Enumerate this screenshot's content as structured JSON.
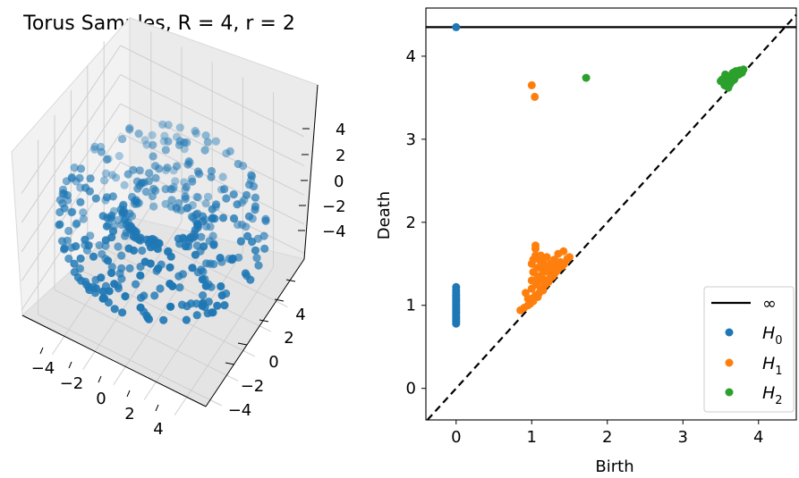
{
  "chart_data": [
    {
      "type": "scatter",
      "projection": "3d",
      "title": "Torus Samples, R = 4, r = 2",
      "series": [
        {
          "color": "#1f77b4",
          "shape": "torus",
          "R": 4,
          "r": 2,
          "n_points": 400
        }
      ],
      "x_ticks": [
        "−4",
        "−2",
        "0",
        "2",
        "4"
      ],
      "y_ticks": [
        "−4",
        "−2",
        "0",
        "2",
        "4"
      ],
      "z_ticks": [
        "−4",
        "−2",
        "0",
        "2",
        "4"
      ],
      "xlim": [
        -6,
        6
      ],
      "ylim": [
        -6,
        6
      ],
      "zlim": [
        -6,
        6
      ],
      "grid": true,
      "pane_color": "#f2f2f2"
    },
    {
      "type": "scatter",
      "title": "",
      "xlabel": "Birth",
      "ylabel": "Death",
      "xlim": [
        -0.4,
        4.5
      ],
      "ylim": [
        -0.38,
        4.58
      ],
      "x_ticks": [
        0,
        1,
        2,
        3,
        4
      ],
      "y_ticks": [
        0,
        1,
        2,
        3,
        4
      ],
      "x_tick_labels": [
        "0",
        "1",
        "2",
        "3",
        "4"
      ],
      "y_tick_labels": [
        "0",
        "1",
        "2",
        "3",
        "4"
      ],
      "infinity_line": {
        "y": 4.35,
        "label": "∞",
        "color": "#000000"
      },
      "diagonal": {
        "style": "dashed",
        "color": "#000000"
      },
      "legend_position": "bottom-right",
      "series": [
        {
          "name": "H0",
          "name_base": "H",
          "name_sub": "0",
          "color": "#1f77b4",
          "points": [
            [
              0,
              4.35
            ],
            [
              0,
              0.78
            ],
            [
              0,
              0.8
            ],
            [
              0,
              0.82
            ],
            [
              0,
              0.84
            ],
            [
              0,
              0.86
            ],
            [
              0,
              0.88
            ],
            [
              0,
              0.9
            ],
            [
              0,
              0.92
            ],
            [
              0,
              0.94
            ],
            [
              0,
              0.96
            ],
            [
              0,
              0.98
            ],
            [
              0,
              1.0
            ],
            [
              0,
              1.02
            ],
            [
              0,
              1.04
            ],
            [
              0,
              1.06
            ],
            [
              0,
              1.08
            ],
            [
              0,
              1.1
            ],
            [
              0,
              1.12
            ],
            [
              0,
              1.15
            ],
            [
              0,
              1.18
            ],
            [
              0,
              1.22
            ]
          ]
        },
        {
          "name": "H1",
          "name_base": "H",
          "name_sub": "1",
          "color": "#ff7f0e",
          "points": [
            [
              1.0,
              3.65
            ],
            [
              1.04,
              3.51
            ],
            [
              0.85,
              0.94
            ],
            [
              0.9,
              0.97
            ],
            [
              0.95,
              1.0
            ],
            [
              0.98,
              1.02
            ],
            [
              1.0,
              1.08
            ],
            [
              1.02,
              1.05
            ],
            [
              1.05,
              1.12
            ],
            [
              1.08,
              1.1
            ],
            [
              1.1,
              1.15
            ],
            [
              1.12,
              1.2
            ],
            [
              1.15,
              1.18
            ],
            [
              1.18,
              1.25
            ],
            [
              1.2,
              1.3
            ],
            [
              1.22,
              1.28
            ],
            [
              1.25,
              1.33
            ],
            [
              1.28,
              1.35
            ],
            [
              1.3,
              1.38
            ],
            [
              1.33,
              1.41
            ],
            [
              1.36,
              1.45
            ],
            [
              1.4,
              1.47
            ],
            [
              1.43,
              1.5
            ],
            [
              1.47,
              1.56
            ],
            [
              1.5,
              1.58
            ],
            [
              1.0,
              1.2
            ],
            [
              1.0,
              1.3
            ],
            [
              1.02,
              1.4
            ],
            [
              1.0,
              1.5
            ],
            [
              1.02,
              1.55
            ],
            [
              1.05,
              1.6
            ],
            [
              1.05,
              1.68
            ],
            [
              1.07,
              1.45
            ],
            [
              1.08,
              1.35
            ],
            [
              1.1,
              1.55
            ],
            [
              1.12,
              1.48
            ],
            [
              1.12,
              1.6
            ],
            [
              1.15,
              1.4
            ],
            [
              1.15,
              1.52
            ],
            [
              1.18,
              1.45
            ],
            [
              1.2,
              1.58
            ],
            [
              1.22,
              1.42
            ],
            [
              1.25,
              1.5
            ],
            [
              1.28,
              1.45
            ],
            [
              1.3,
              1.55
            ],
            [
              1.32,
              1.48
            ],
            [
              1.35,
              1.62
            ],
            [
              1.38,
              1.52
            ],
            [
              1.42,
              1.65
            ],
            [
              0.92,
              1.15
            ],
            [
              0.95,
              1.08
            ],
            [
              1.06,
              1.25
            ],
            [
              1.1,
              1.3
            ],
            [
              1.14,
              1.33
            ],
            [
              1.16,
              1.28
            ],
            [
              1.24,
              1.38
            ],
            [
              1.05,
              1.72
            ]
          ]
        },
        {
          "name": "H2",
          "name_base": "H",
          "name_sub": "2",
          "color": "#2ca02c",
          "points": [
            [
              1.72,
              3.74
            ],
            [
              3.5,
              3.7
            ],
            [
              3.52,
              3.72
            ],
            [
              3.55,
              3.65
            ],
            [
              3.56,
              3.78
            ],
            [
              3.58,
              3.7
            ],
            [
              3.6,
              3.62
            ],
            [
              3.6,
              3.74
            ],
            [
              3.62,
              3.68
            ],
            [
              3.64,
              3.76
            ],
            [
              3.65,
              3.7
            ],
            [
              3.66,
              3.8
            ],
            [
              3.68,
              3.72
            ],
            [
              3.7,
              3.76
            ],
            [
              3.72,
              3.79
            ],
            [
              3.74,
              3.78
            ],
            [
              3.76,
              3.82
            ],
            [
              3.78,
              3.8
            ],
            [
              3.8,
              3.84
            ],
            [
              3.62,
              3.66
            ],
            [
              3.58,
              3.64
            ],
            [
              3.54,
              3.68
            ],
            [
              3.66,
              3.73
            ],
            [
              3.7,
              3.82
            ],
            [
              3.75,
              3.83
            ]
          ]
        }
      ]
    }
  ]
}
